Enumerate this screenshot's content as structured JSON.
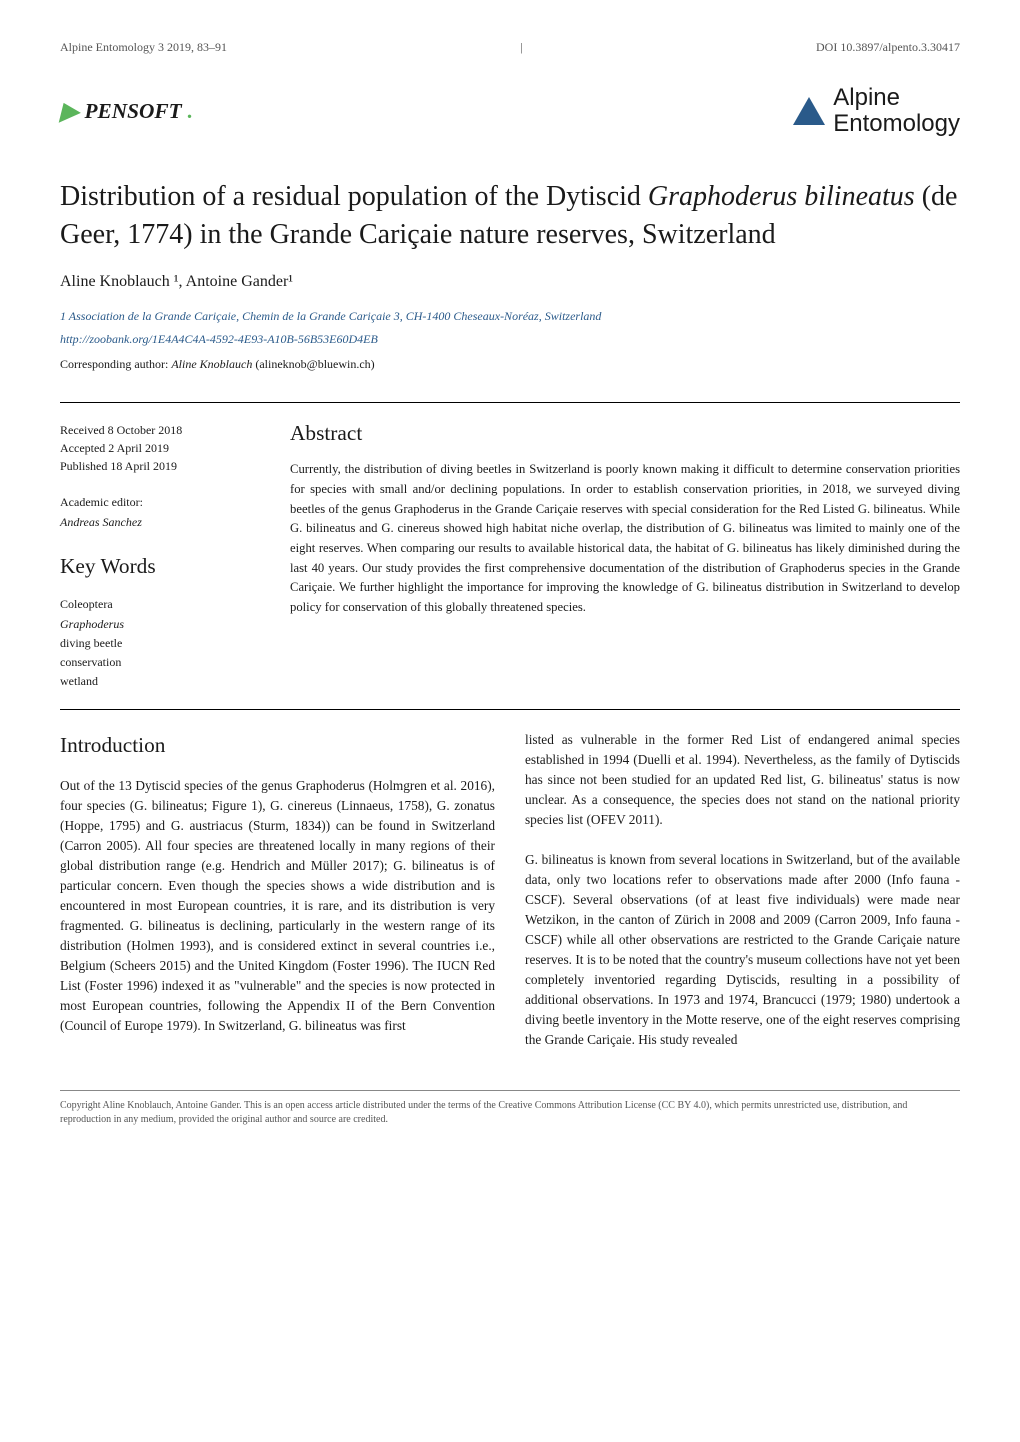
{
  "header": {
    "journal_ref": "Alpine Entomology 3 2019, 83–91",
    "doi": "DOI 10.3897/alpento.3.30417"
  },
  "logos": {
    "pensoft": "PENSOFT",
    "pensoft_dot": ".",
    "journal_line1": "Alpine",
    "journal_line2": "Entomology"
  },
  "title": "Distribution of a residual population of the Dytiscid Graphoderus bilineatus (de Geer, 1774) in the Grande Cariçaie nature reserves, Switzerland",
  "authors": "Aline Knoblauch ¹, Antoine Gander¹",
  "affiliation": "1   Association de la Grande Cariçaie, Chemin de la Grande Cariçaie 3, CH-1400 Cheseaux-Noréaz, Switzerland",
  "zoobank": "http://zoobank.org/1E4A4C4A-4592-4E93-A10B-56B53E60D4EB",
  "corresponding": {
    "label": "Corresponding author:",
    "name": "Aline Knoblauch",
    "email": "(alineknob@bluewin.ch)"
  },
  "dates": {
    "received": "Received 8 October 2018",
    "accepted": "Accepted 2 April 2019",
    "published": "Published 18 April 2019"
  },
  "editor": {
    "label": "Academic editor:",
    "name": "Andreas Sanchez"
  },
  "keywords": {
    "heading": "Key Words",
    "items": [
      "Coleoptera",
      "Graphoderus",
      "diving beetle",
      "conservation",
      "wetland"
    ]
  },
  "abstract": {
    "heading": "Abstract",
    "text": "Currently, the distribution of diving beetles in Switzerland is poorly known making it difficult to determine conservation priorities for species with small and/or declining populations. In order to establish conservation priorities, in 2018, we surveyed diving beetles of the genus Graphoderus in the Grande Cariçaie reserves with special consideration for the Red Listed G. bilineatus. While G. bilineatus and G. cinereus showed high habitat niche overlap, the distribution of G. bilineatus was limited to mainly one of the eight reserves. When comparing our results to available historical data, the habitat of G. bilineatus has likely diminished during the last 40 years. Our study provides the first comprehensive documentation of the distribution of Graphoderus species in the Grande Cariçaie. We further highlight the importance for improving the knowledge of G. bilineatus distribution in Switzerland to develop policy for conservation of this globally threatened species."
  },
  "introduction": {
    "heading": "Introduction",
    "col1": "Out of the 13 Dytiscid species of the genus Graphoderus (Holmgren et al. 2016), four species (G. bilineatus; Figure 1), G. cinereus (Linnaeus, 1758), G. zonatus (Hoppe, 1795) and G. austriacus (Sturm, 1834)) can be found in Switzerland (Carron 2005). All four species are threatened locally in many regions of their global distribution range (e.g. Hendrich and Müller 2017); G. bilineatus is of particular concern. Even though the species shows a wide distribution and is encountered in most European countries, it is rare, and its distribution is very fragmented. G. bilineatus is declining, particularly in the western range of its distribution (Holmen 1993), and is considered extinct in several countries i.e., Belgium (Scheers 2015) and the United Kingdom (Foster 1996). The IUCN Red List (Foster 1996) indexed it as \"vulnerable\" and the species is now protected in most European countries, following the Appendix II of the Bern Convention (Council of Europe 1979). In Switzerland, G. bilineatus was first",
    "col2": "listed as vulnerable in the former Red List of endangered animal species established in 1994 (Duelli et al. 1994). Nevertheless, as the family of Dytiscids has since not been studied for an updated Red list, G. bilineatus' status is now unclear. As a consequence, the species does not stand on the national priority species list (OFEV 2011).\n\nG. bilineatus is known from several locations in Switzerland, but of the available data, only two locations refer to observations made after 2000 (Info fauna - CSCF). Several observations (of at least five individuals) were made near Wetzikon, in the canton of Zürich in 2008 and 2009 (Carron 2009, Info fauna - CSCF) while all other observations are restricted to the Grande Cariçaie nature reserves. It is to be noted that the country's museum collections have not yet been completely inventoried regarding Dytiscids, resulting in a possibility of additional observations. In 1973 and 1974, Brancucci (1979; 1980) undertook a diving beetle inventory in the Motte reserve, one of the eight reserves comprising the Grande Cariçaie. His study revealed"
  },
  "copyright": "Copyright Aline Knoblauch, Antoine Gander. This is an open access article distributed under the terms of the Creative Commons Attribution License (CC BY 4.0), which permits unrestricted use, distribution, and reproduction in any medium, provided the original author and source are credited."
}
